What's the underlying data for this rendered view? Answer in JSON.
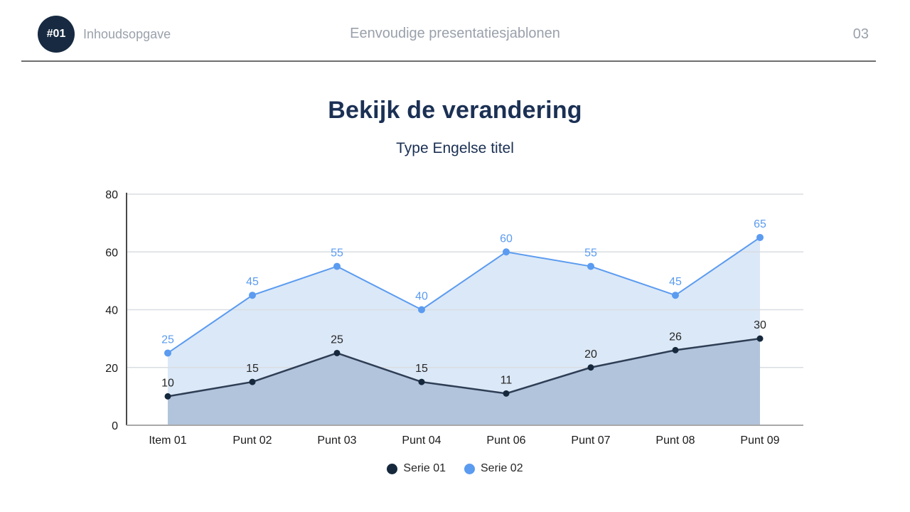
{
  "header": {
    "badge_label": "#01",
    "section_label": "Inhoudsopgave",
    "title": "Eenvoudige presentatiesjablonen",
    "page_number": "03"
  },
  "main": {
    "title": "Bekijk de verandering",
    "subtitle": "Type Engelse titel"
  },
  "colors": {
    "badge_bg": "#172a41",
    "header_text": "#9aa1ab",
    "title_text": "#1b3054",
    "divider": "#6f6f6f",
    "gridline": "#d9dde2",
    "y_axis_line": "#4a4a4a",
    "x_axis_line": "#a9a9a9",
    "tick_text": "#1a1a1a"
  },
  "chart_data": {
    "type": "area",
    "title": "Bekijk de verandering",
    "subtitle": "Type Engelse titel",
    "categories": [
      "Item 01",
      "Punt 02",
      "Punt 03",
      "Punt 04",
      "Punt 06",
      "Punt 07",
      "Punt 08",
      "Punt 09"
    ],
    "series": [
      {
        "name": "Serie 02",
        "values": [
          25,
          45,
          55,
          40,
          60,
          55,
          45,
          65
        ],
        "line_color": "#5b9bf0",
        "marker_color": "#5b9bf0",
        "fill_color": "#dbe8f7",
        "label_color": "#5b9bf0"
      },
      {
        "name": "Serie 01",
        "values": [
          10,
          15,
          25,
          15,
          11,
          20,
          26,
          30
        ],
        "line_color": "#2f3e55",
        "marker_color": "#16283c",
        "fill_color": "#b1c4db",
        "label_color": "#262626"
      }
    ],
    "xlabel": "",
    "ylabel": "",
    "y_ticks": [
      0,
      20,
      40,
      60,
      80
    ],
    "ylim": [
      0,
      80
    ],
    "grid": true,
    "data_labels": true,
    "legend_position": "bottom",
    "legend": [
      {
        "name": "Serie 01",
        "color": "#16283c"
      },
      {
        "name": "Serie 02",
        "color": "#5b9bf0"
      }
    ]
  }
}
